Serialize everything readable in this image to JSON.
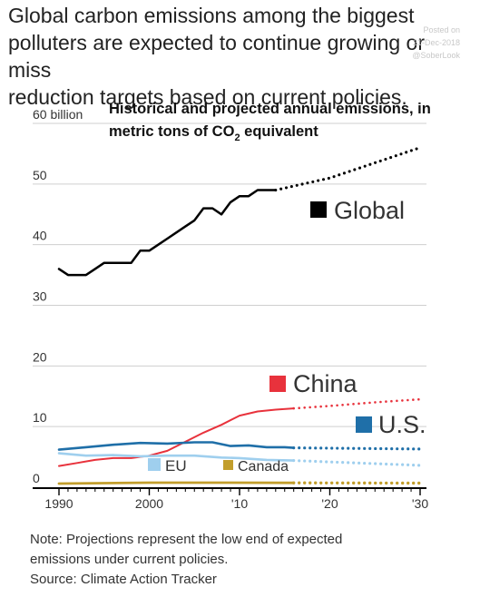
{
  "headline": {
    "lines": [
      "Global carbon emissions among the biggest",
      "polluters are expected to continue growing or miss",
      "reduction targets based on current policies."
    ]
  },
  "watermark": {
    "posted_on": "Posted on",
    "date": "21-Dec-2018",
    "handle": "@SoberLook"
  },
  "chart_data": {
    "type": "line",
    "title": "Historical and projected annual emissions, in metric tons of CO₂ equivalent",
    "title_lines": [
      "Historical and projected annual emissions, in",
      "metric tons of CO",
      "2",
      " equivalent"
    ],
    "y_tick_labels": [
      "60 billion",
      "50",
      "40",
      "30",
      "20",
      "10",
      "0"
    ],
    "y_ticks": [
      60,
      50,
      40,
      30,
      20,
      10,
      0
    ],
    "x_tick_labels": [
      "1990",
      "2000",
      "'10",
      "'20",
      "'30"
    ],
    "x_ticks": [
      1990,
      2000,
      2010,
      2020,
      2030
    ],
    "xlim": [
      1990,
      2030
    ],
    "ylim": [
      0,
      60
    ],
    "grid": true,
    "series": [
      {
        "name": "Global",
        "color": "#000000",
        "historical": [
          [
            1990,
            36
          ],
          [
            1991,
            35
          ],
          [
            1992,
            35
          ],
          [
            1993,
            35
          ],
          [
            1994,
            36
          ],
          [
            1995,
            37
          ],
          [
            1996,
            37
          ],
          [
            1997,
            37
          ],
          [
            1998,
            37
          ],
          [
            1999,
            39
          ],
          [
            2000,
            39
          ],
          [
            2001,
            40
          ],
          [
            2002,
            41
          ],
          [
            2003,
            42
          ],
          [
            2004,
            43
          ],
          [
            2005,
            44
          ],
          [
            2006,
            46
          ],
          [
            2007,
            46
          ],
          [
            2008,
            45
          ],
          [
            2009,
            47
          ],
          [
            2010,
            48
          ],
          [
            2011,
            48
          ],
          [
            2012,
            49
          ],
          [
            2013,
            49
          ],
          [
            2014,
            49
          ]
        ],
        "projected": [
          [
            2014,
            49
          ],
          [
            2020,
            51
          ],
          [
            2025,
            53.5
          ],
          [
            2030,
            56
          ]
        ]
      },
      {
        "name": "China",
        "color": "#e8323c",
        "historical": [
          [
            1990,
            3.5
          ],
          [
            1992,
            4
          ],
          [
            1994,
            4.5
          ],
          [
            1996,
            4.8
          ],
          [
            1998,
            4.8
          ],
          [
            2000,
            5.2
          ],
          [
            2002,
            6
          ],
          [
            2004,
            7.5
          ],
          [
            2006,
            9
          ],
          [
            2008,
            10.3
          ],
          [
            2010,
            11.8
          ],
          [
            2012,
            12.5
          ],
          [
            2014,
            12.8
          ],
          [
            2016,
            13
          ]
        ],
        "projected": [
          [
            2016,
            13
          ],
          [
            2020,
            13.4
          ],
          [
            2025,
            14
          ],
          [
            2030,
            14.5
          ]
        ]
      },
      {
        "name": "U.S.",
        "color": "#1f6fa8",
        "historical": [
          [
            1990,
            6.2
          ],
          [
            1993,
            6.6
          ],
          [
            1996,
            7
          ],
          [
            1999,
            7.3
          ],
          [
            2002,
            7.2
          ],
          [
            2005,
            7.4
          ],
          [
            2007,
            7.4
          ],
          [
            2009,
            6.8
          ],
          [
            2011,
            6.9
          ],
          [
            2013,
            6.6
          ],
          [
            2015,
            6.6
          ],
          [
            2016,
            6.5
          ]
        ],
        "projected": [
          [
            2016,
            6.5
          ],
          [
            2030,
            6.3
          ]
        ]
      },
      {
        "name": "EU",
        "color": "#9fcfee",
        "historical": [
          [
            1990,
            5.6
          ],
          [
            1993,
            5.2
          ],
          [
            1996,
            5.3
          ],
          [
            1999,
            5.1
          ],
          [
            2002,
            5.2
          ],
          [
            2005,
            5.2
          ],
          [
            2008,
            4.9
          ],
          [
            2010,
            4.8
          ],
          [
            2013,
            4.5
          ],
          [
            2016,
            4.4
          ]
        ],
        "projected": [
          [
            2016,
            4.4
          ],
          [
            2030,
            3.6
          ]
        ]
      },
      {
        "name": "Canada",
        "color": "#c29e2c",
        "historical": [
          [
            1990,
            0.6
          ],
          [
            2000,
            0.75
          ],
          [
            2008,
            0.75
          ],
          [
            2016,
            0.72
          ]
        ],
        "projected": [
          [
            2016,
            0.72
          ],
          [
            2030,
            0.68
          ]
        ]
      }
    ]
  },
  "note": {
    "lines": [
      "Note: Projections represent the low end of expected",
      "emissions under current policies.",
      "Source: Climate Action Tracker"
    ]
  }
}
